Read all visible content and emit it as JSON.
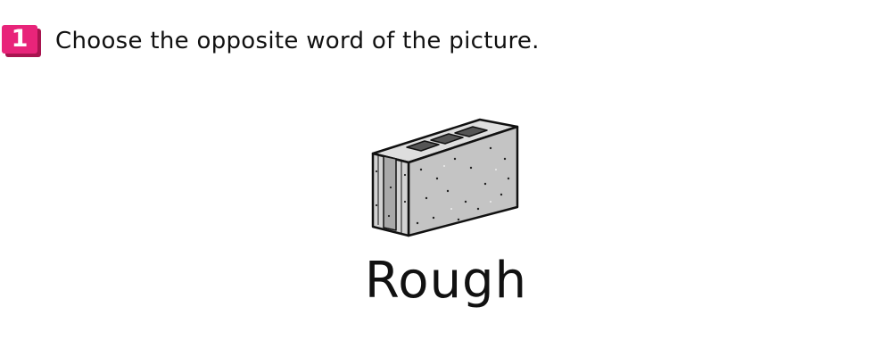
{
  "question": {
    "number": "1",
    "instruction": "Choose the opposite word of the picture."
  },
  "picture": {
    "icon": "concrete-block-icon"
  },
  "answer_word": "Rough",
  "colors": {
    "badge": "#e8247a",
    "badge_shadow": "#a8144f",
    "block_face": "#c9c9c9",
    "block_top": "#dedede",
    "block_hole": "#555555"
  }
}
